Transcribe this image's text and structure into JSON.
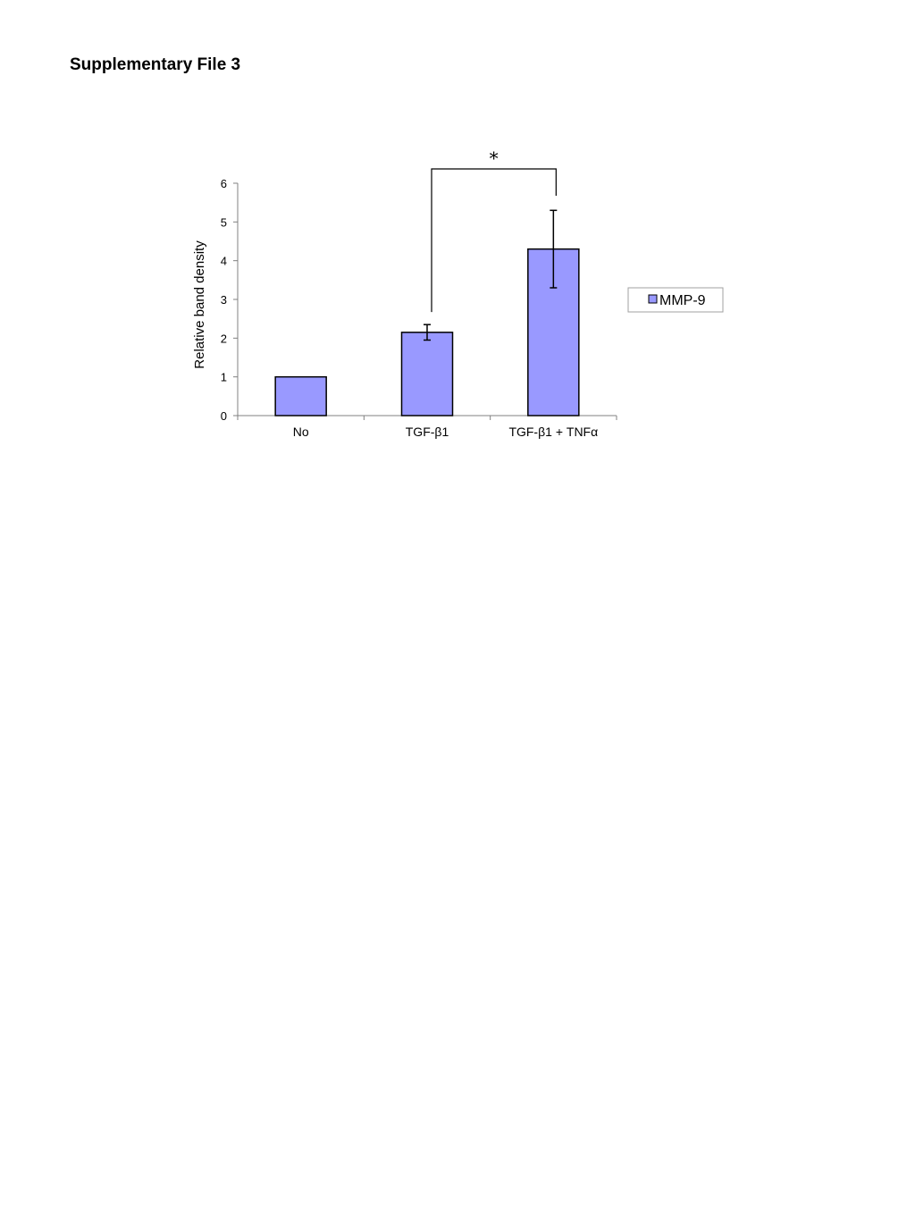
{
  "document": {
    "title": "Supplementary File 3"
  },
  "chart_data": {
    "type": "bar",
    "title": "",
    "xlabel": "",
    "ylabel": "Relative band density",
    "categories": [
      "No",
      "TGF-β1",
      "TGF-β1 + TNFα"
    ],
    "series": [
      {
        "name": "MMP-9",
        "values": [
          1.0,
          2.15,
          4.3
        ],
        "error": [
          0.0,
          0.2,
          1.0
        ],
        "color": "#9999ff"
      }
    ],
    "ylim": [
      0,
      6
    ],
    "yticks": [
      "0",
      "1",
      "2",
      "3",
      "4",
      "5",
      "6"
    ],
    "grid": false,
    "legend_position": "right",
    "significance": {
      "from_category": 1,
      "to_category": 2,
      "label": "*"
    }
  }
}
